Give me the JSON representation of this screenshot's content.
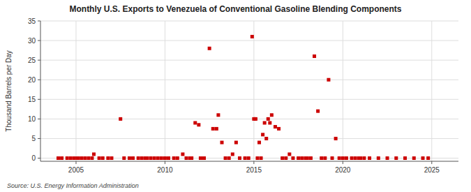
{
  "chart_data": {
    "type": "scatter",
    "title": "Monthly U.S. Exports to Venezuela of Conventional Gasoline Blending Components",
    "y_label": "Thousand Barrels per Day",
    "source": "Source: U.S. Energy Information Administration",
    "color": "#cc0000",
    "marker": "square",
    "grid": true,
    "xlim": [
      2003.0,
      2026.5
    ],
    "ylim": [
      -0.8,
      35
    ],
    "xticks": [
      2005,
      2010,
      2015,
      2020,
      2025
    ],
    "yticks": [
      0,
      5,
      10,
      15,
      20,
      25,
      30,
      35
    ],
    "x": [
      2004.0,
      2004.2,
      2004.5,
      2004.7,
      2004.9,
      2005.1,
      2005.3,
      2005.5,
      2005.7,
      2005.9,
      2006.0,
      2006.3,
      2006.5,
      2006.8,
      2007.0,
      2007.5,
      2007.7,
      2008.0,
      2008.2,
      2008.5,
      2008.7,
      2008.9,
      2009.0,
      2009.2,
      2009.4,
      2009.6,
      2009.8,
      2010.0,
      2010.2,
      2010.5,
      2010.7,
      2011.0,
      2011.2,
      2011.4,
      2011.5,
      2011.7,
      2011.9,
      2012.0,
      2012.1,
      2012.2,
      2012.5,
      2012.7,
      2012.9,
      2013.0,
      2013.2,
      2013.4,
      2013.6,
      2013.8,
      2014.0,
      2014.2,
      2014.5,
      2014.7,
      2014.9,
      2015.0,
      2015.1,
      2015.2,
      2015.3,
      2015.4,
      2015.5,
      2015.6,
      2015.7,
      2015.8,
      2015.9,
      2016.0,
      2016.2,
      2016.4,
      2016.6,
      2016.8,
      2017.0,
      2017.2,
      2017.5,
      2017.7,
      2017.9,
      2018.0,
      2018.2,
      2018.4,
      2018.6,
      2018.8,
      2019.0,
      2019.2,
      2019.4,
      2019.6,
      2019.8,
      2020.0,
      2020.2,
      2020.5,
      2020.7,
      2020.9,
      2021.0,
      2021.2,
      2021.5,
      2022.0,
      2022.5,
      2023.0,
      2023.5,
      2024.0,
      2024.5,
      2024.8
    ],
    "values": [
      0.0,
      0.0,
      0.0,
      0.0,
      0.0,
      0.0,
      0.0,
      0.0,
      0.0,
      0.0,
      1.0,
      0.0,
      0.0,
      0.0,
      0.0,
      10.0,
      0.0,
      0.0,
      0.0,
      0.0,
      0.0,
      0.0,
      0.0,
      0.0,
      0.0,
      0.0,
      0.0,
      0.0,
      0.0,
      0.0,
      0.0,
      1.0,
      0.0,
      0.0,
      0.0,
      9.0,
      8.5,
      0.0,
      0.0,
      0.0,
      28.0,
      7.5,
      7.5,
      11.0,
      4.0,
      0.0,
      0.0,
      1.0,
      4.0,
      0.0,
      0.0,
      0.0,
      31.0,
      10.0,
      10.0,
      0.0,
      4.0,
      0.0,
      6.0,
      9.0,
      5.0,
      10.0,
      9.0,
      11.0,
      8.0,
      7.5,
      0.0,
      0.0,
      1.0,
      0.0,
      0.0,
      0.0,
      0.0,
      0.0,
      0.0,
      26.0,
      12.0,
      0.0,
      0.0,
      20.0,
      0.0,
      5.0,
      0.0,
      0.0,
      0.0,
      0.0,
      0.0,
      0.0,
      0.0,
      0.0,
      0.0,
      0.0,
      0.0,
      0.0,
      0.0,
      0.0,
      0.0,
      0.0
    ]
  }
}
